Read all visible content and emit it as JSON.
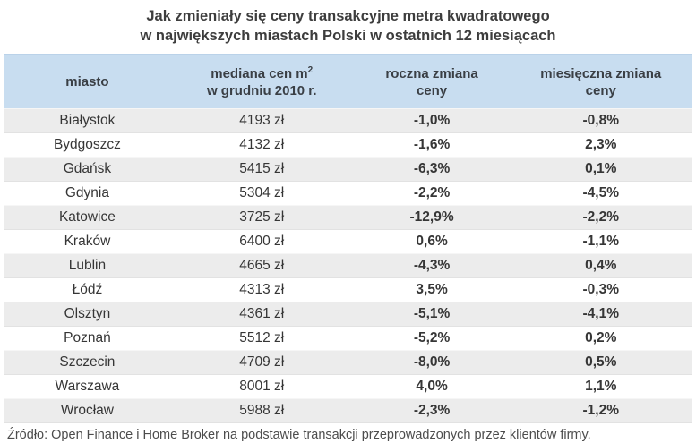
{
  "title": {
    "line1": "Jak zmieniały się ceny transakcyjne metra kwadratowego",
    "line2": "w największych miastach Polski w ostatnich 12 miesiącach"
  },
  "table": {
    "headers": {
      "city": "miasto",
      "median_line1": "mediana cen m",
      "median_sup": "2",
      "median_line2": "w grudniu 2010 r.",
      "yearly_line1": "roczna zmiana",
      "yearly_line2": "ceny",
      "monthly_line1": "miesięczna zmiana",
      "monthly_line2": "ceny"
    },
    "rows": [
      {
        "city": "Białystok",
        "median": "4193 zł",
        "yearly": "-1,0%",
        "monthly": "-0,8%"
      },
      {
        "city": "Bydgoszcz",
        "median": "4132 zł",
        "yearly": "-1,6%",
        "monthly": "2,3%"
      },
      {
        "city": "Gdańsk",
        "median": "5415 zł",
        "yearly": "-6,3%",
        "monthly": "0,1%"
      },
      {
        "city": "Gdynia",
        "median": "5304 zł",
        "yearly": "-2,2%",
        "monthly": "-4,5%"
      },
      {
        "city": "Katowice",
        "median": "3725 zł",
        "yearly": "-12,9%",
        "monthly": "-2,2%"
      },
      {
        "city": "Kraków",
        "median": "6400 zł",
        "yearly": "0,6%",
        "monthly": "-1,1%"
      },
      {
        "city": "Lublin",
        "median": "4665 zł",
        "yearly": "-4,3%",
        "monthly": "0,4%"
      },
      {
        "city": "Łódź",
        "median": "4313 zł",
        "yearly": "3,5%",
        "monthly": "-0,3%"
      },
      {
        "city": "Olsztyn",
        "median": "4361 zł",
        "yearly": "-5,1%",
        "monthly": "-4,1%"
      },
      {
        "city": "Poznań",
        "median": "5512 zł",
        "yearly": "-5,2%",
        "monthly": "0,2%"
      },
      {
        "city": "Szczecin",
        "median": "4709 zł",
        "yearly": "-8,0%",
        "monthly": "0,5%"
      },
      {
        "city": "Warszawa",
        "median": "8001 zł",
        "yearly": "4,0%",
        "monthly": "1,1%"
      },
      {
        "city": "Wrocław",
        "median": "5988 zł",
        "yearly": "-2,3%",
        "monthly": "-1,2%"
      }
    ]
  },
  "source": "Źródło: Open Finance i Home Broker na podstawie transakcji przeprowadzonych przez klientów firmy.",
  "colors": {
    "header_bg": "#c8ddf0",
    "header_top_border": "#bad2e9",
    "row_alt_bg": "#ececec",
    "title_text": "#3d3d3d",
    "body_text": "#363636",
    "source_text": "#4c4c4c"
  },
  "chart_data": {
    "type": "table",
    "title": "Jak zmieniały się ceny transakcyjne metra kwadratowego w największych miastach Polski w ostatnich 12 miesiącach",
    "columns": [
      "miasto",
      "mediana cen m2 w grudniu 2010 r.",
      "roczna zmiana ceny",
      "miesięczna zmiana ceny"
    ],
    "rows": [
      {
        "miasto": "Białystok",
        "mediana_zl": 4193,
        "roczna_zmiana_pct": -1.0,
        "miesieczna_zmiana_pct": -0.8
      },
      {
        "miasto": "Bydgoszcz",
        "mediana_zl": 4132,
        "roczna_zmiana_pct": -1.6,
        "miesieczna_zmiana_pct": 2.3
      },
      {
        "miasto": "Gdańsk",
        "mediana_zl": 5415,
        "roczna_zmiana_pct": -6.3,
        "miesieczna_zmiana_pct": 0.1
      },
      {
        "miasto": "Gdynia",
        "mediana_zl": 5304,
        "roczna_zmiana_pct": -2.2,
        "miesieczna_zmiana_pct": -4.5
      },
      {
        "miasto": "Katowice",
        "mediana_zl": 3725,
        "roczna_zmiana_pct": -12.9,
        "miesieczna_zmiana_pct": -2.2
      },
      {
        "miasto": "Kraków",
        "mediana_zl": 6400,
        "roczna_zmiana_pct": 0.6,
        "miesieczna_zmiana_pct": -1.1
      },
      {
        "miasto": "Lublin",
        "mediana_zl": 4665,
        "roczna_zmiana_pct": -4.3,
        "miesieczna_zmiana_pct": 0.4
      },
      {
        "miasto": "Łódź",
        "mediana_zl": 4313,
        "roczna_zmiana_pct": 3.5,
        "miesieczna_zmiana_pct": -0.3
      },
      {
        "miasto": "Olsztyn",
        "mediana_zl": 4361,
        "roczna_zmiana_pct": -5.1,
        "miesieczna_zmiana_pct": -4.1
      },
      {
        "miasto": "Poznań",
        "mediana_zl": 5512,
        "roczna_zmiana_pct": -5.2,
        "miesieczna_zmiana_pct": 0.2
      },
      {
        "miasto": "Szczecin",
        "mediana_zl": 4709,
        "roczna_zmiana_pct": -8.0,
        "miesieczna_zmiana_pct": 0.5
      },
      {
        "miasto": "Warszawa",
        "mediana_zl": 8001,
        "roczna_zmiana_pct": 4.0,
        "miesieczna_zmiana_pct": 1.1
      },
      {
        "miasto": "Wrocław",
        "mediana_zl": 5988,
        "roczna_zmiana_pct": -2.3,
        "miesieczna_zmiana_pct": -1.2
      }
    ]
  }
}
